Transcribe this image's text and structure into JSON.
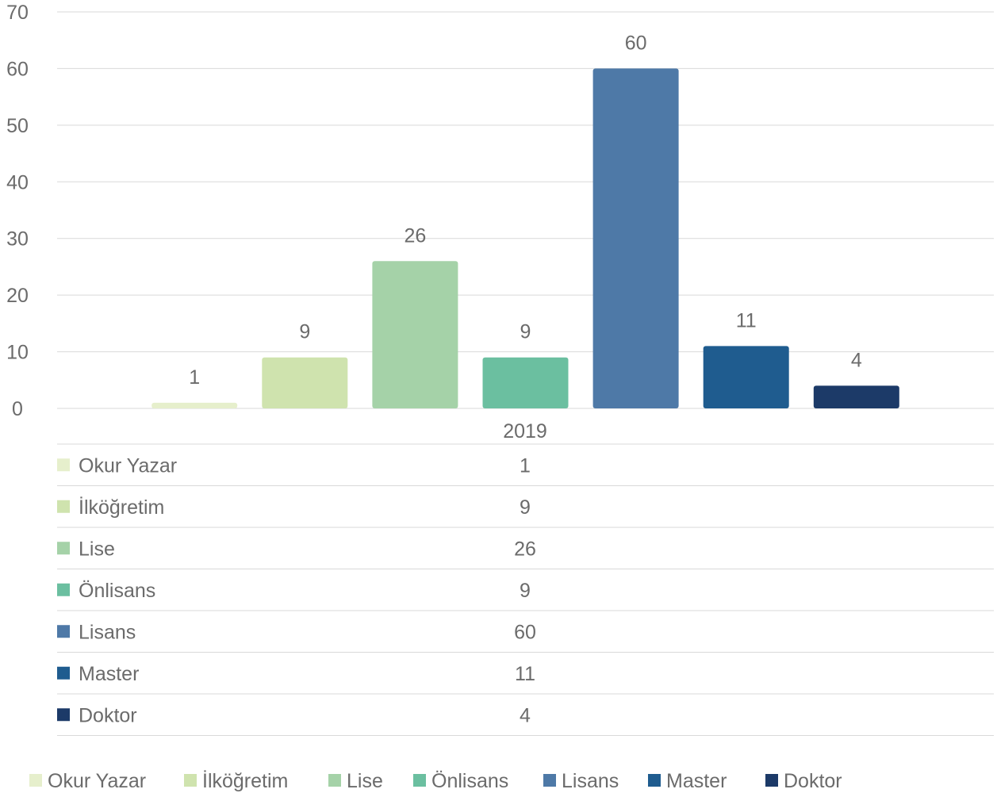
{
  "chart_data": {
    "type": "bar",
    "title": "",
    "xlabel": "",
    "ylabel": "",
    "categories": [
      "2019"
    ],
    "series": [
      {
        "name": "Okur Yazar",
        "values": [
          1
        ],
        "color": "#e6efcc"
      },
      {
        "name": "İlköğretim",
        "values": [
          9
        ],
        "color": "#cfe3ae"
      },
      {
        "name": "Lise",
        "values": [
          26
        ],
        "color": "#a5d2a8"
      },
      {
        "name": "Önlisans",
        "values": [
          9
        ],
        "color": "#6bbfa0"
      },
      {
        "name": "Lisans",
        "values": [
          60
        ],
        "color": "#4e79a7"
      },
      {
        "name": "Master",
        "values": [
          11
        ],
        "color": "#1f5c8f"
      },
      {
        "name": "Doktor",
        "values": [
          4
        ],
        "color": "#1c3a68"
      }
    ],
    "ylim": [
      0,
      70
    ],
    "yticks": [
      0,
      10,
      20,
      30,
      40,
      50,
      60,
      70
    ],
    "grid": true,
    "data_table": true,
    "legend_position": "bottom"
  }
}
